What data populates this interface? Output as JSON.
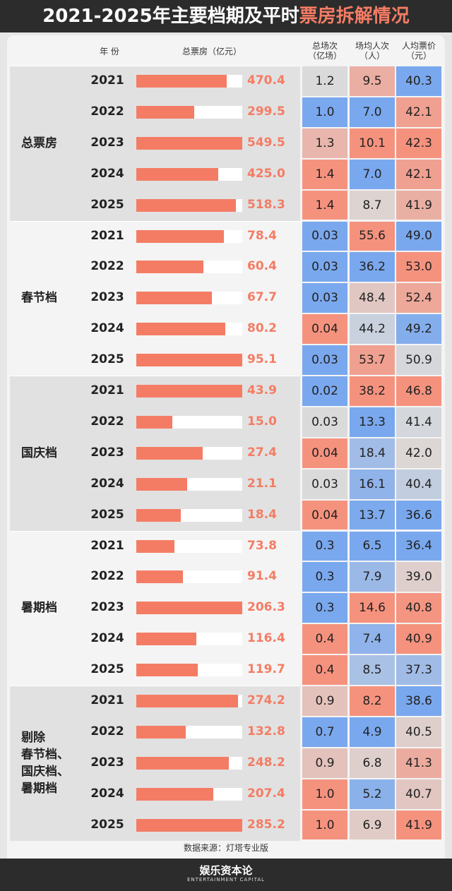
{
  "header": {
    "title": "2021-2025年主要档期及平时",
    "title_highlight": "票房拆解情况"
  },
  "table": {
    "columns": {
      "year": "年 份",
      "box_office": "总票房（亿元）",
      "sessions": [
        "总场次",
        "（亿场）"
      ],
      "attendance": [
        "场均人次",
        "（人）"
      ],
      "price": [
        "人均票价",
        "（元）"
      ]
    },
    "groups": [
      {
        "label": [
          "总票房"
        ],
        "rows": [
          {
            "year": "2021",
            "box_office": "470.4",
            "sessions": "1.2",
            "attendance": "9.5",
            "price": "40.3"
          },
          {
            "year": "2022",
            "box_office": "299.5",
            "sessions": "1.0",
            "attendance": "7.0",
            "price": "42.1"
          },
          {
            "year": "2023",
            "box_office": "549.5",
            "sessions": "1.3",
            "attendance": "10.1",
            "price": "42.3"
          },
          {
            "year": "2024",
            "box_office": "425.0",
            "sessions": "1.4",
            "attendance": "7.0",
            "price": "42.1"
          },
          {
            "year": "2025",
            "box_office": "518.3",
            "sessions": "1.4",
            "attendance": "8.7",
            "price": "41.9"
          }
        ]
      },
      {
        "label": [
          "春节档"
        ],
        "rows": [
          {
            "year": "2021",
            "box_office": "78.4",
            "sessions": "0.03",
            "attendance": "55.6",
            "price": "49.0"
          },
          {
            "year": "2022",
            "box_office": "60.4",
            "sessions": "0.03",
            "attendance": "36.2",
            "price": "53.0"
          },
          {
            "year": "2023",
            "box_office": "67.7",
            "sessions": "0.03",
            "attendance": "48.4",
            "price": "52.4"
          },
          {
            "year": "2024",
            "box_office": "80.2",
            "sessions": "0.04",
            "attendance": "44.2",
            "price": "49.2"
          },
          {
            "year": "2025",
            "box_office": "95.1",
            "sessions": "0.03",
            "attendance": "53.7",
            "price": "50.9"
          }
        ]
      },
      {
        "label": [
          "国庆档"
        ],
        "rows": [
          {
            "year": "2021",
            "box_office": "43.9",
            "sessions": "0.02",
            "attendance": "38.2",
            "price": "46.8"
          },
          {
            "year": "2022",
            "box_office": "15.0",
            "sessions": "0.03",
            "attendance": "13.3",
            "price": "41.4"
          },
          {
            "year": "2023",
            "box_office": "27.4",
            "sessions": "0.04",
            "attendance": "18.4",
            "price": "42.0"
          },
          {
            "year": "2024",
            "box_office": "21.1",
            "sessions": "0.03",
            "attendance": "16.1",
            "price": "40.4"
          },
          {
            "year": "2025",
            "box_office": "18.4",
            "sessions": "0.04",
            "attendance": "13.7",
            "price": "36.6"
          }
        ]
      },
      {
        "label": [
          "暑期档"
        ],
        "rows": [
          {
            "year": "2021",
            "box_office": "73.8",
            "sessions": "0.3",
            "attendance": "6.5",
            "price": "36.4"
          },
          {
            "year": "2022",
            "box_office": "91.4",
            "sessions": "0.3",
            "attendance": "7.9",
            "price": "39.0"
          },
          {
            "year": "2023",
            "box_office": "206.3",
            "sessions": "0.3",
            "attendance": "14.6",
            "price": "40.8"
          },
          {
            "year": "2024",
            "box_office": "116.4",
            "sessions": "0.4",
            "attendance": "7.4",
            "price": "40.9"
          },
          {
            "year": "2025",
            "box_office": "119.7",
            "sessions": "0.4",
            "attendance": "8.5",
            "price": "37.3"
          }
        ]
      },
      {
        "label": [
          "剔除",
          "春节档、",
          "国庆档、",
          "暑期档"
        ],
        "rows": [
          {
            "year": "2021",
            "box_office": "274.2",
            "sessions": "0.9",
            "attendance": "8.2",
            "price": "38.6"
          },
          {
            "year": "2022",
            "box_office": "132.8",
            "sessions": "0.7",
            "attendance": "4.9",
            "price": "40.5"
          },
          {
            "year": "2023",
            "box_office": "248.2",
            "sessions": "0.9",
            "attendance": "6.8",
            "price": "41.3"
          },
          {
            "year": "2024",
            "box_office": "207.4",
            "sessions": "1.0",
            "attendance": "5.2",
            "price": "40.7"
          },
          {
            "year": "2025",
            "box_office": "285.2",
            "sessions": "1.0",
            "attendance": "6.9",
            "price": "41.9"
          }
        ]
      }
    ]
  },
  "footer": {
    "source": "数据来源：灯塔专业版",
    "logo": "娱乐资本论",
    "logo_subtitle": "ENTERTAINMENT CAPITAL"
  }
}
